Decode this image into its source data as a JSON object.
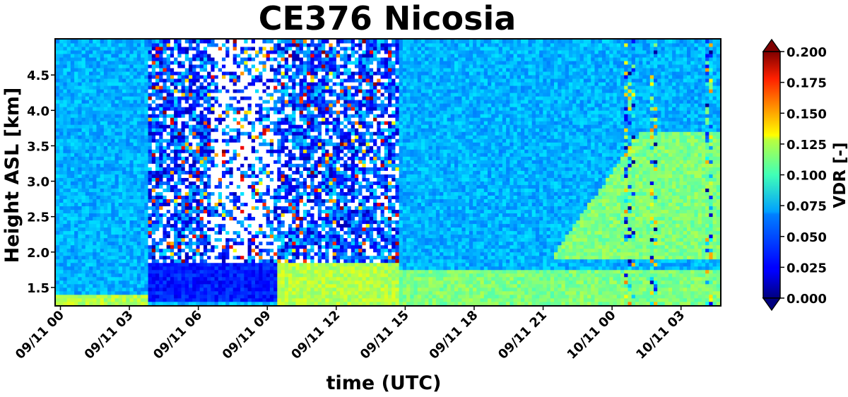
{
  "chart_data": {
    "type": "heatmap",
    "title": "CE376 Nicosia",
    "xlabel": "time (UTC)",
    "ylabel": "Height ASL [km]",
    "x_ticks": [
      "09/11 00",
      "09/11 03",
      "09/11 06",
      "09/11 09",
      "09/11 12",
      "09/11 15",
      "09/11 18",
      "09/11 21",
      "10/11 00",
      "10/11 03"
    ],
    "x_tick_hours": [
      0,
      3,
      6,
      9,
      12,
      15,
      18,
      21,
      24,
      27
    ],
    "xlim_hours": [
      -0.2,
      28.7
    ],
    "y_ticks": [
      "1.5",
      "2.0",
      "2.5",
      "3.0",
      "3.5",
      "4.0",
      "4.5"
    ],
    "y_tick_values": [
      1.5,
      2.0,
      2.5,
      3.0,
      3.5,
      4.0,
      4.5
    ],
    "ylim": [
      1.25,
      5.0
    ],
    "colorbar": {
      "label": "VDR [-]",
      "colormap": "jet",
      "vmin": 0.0,
      "vmax": 0.2,
      "extend": "both",
      "ticks": [
        "0.000",
        "0.025",
        "0.050",
        "0.075",
        "0.100",
        "0.125",
        "0.150",
        "0.175",
        "0.200"
      ],
      "tick_values": [
        0.0,
        0.025,
        0.05,
        0.075,
        0.1,
        0.125,
        0.15,
        0.175,
        0.2
      ]
    },
    "regions": [
      {
        "description": "background free troposphere",
        "t_start": -0.2,
        "t_end": 28.7,
        "h_start": 1.25,
        "h_end": 5.0,
        "vdr": 0.06
      },
      {
        "description": "surface layer",
        "t_start": -0.2,
        "t_end": 3.8,
        "h_start": 1.25,
        "h_end": 1.42,
        "vdr": 0.11
      },
      {
        "description": "noisy cloud period",
        "t_start": 3.8,
        "t_end": 14.8,
        "h_start": 1.3,
        "h_end": 5.0,
        "vdr": 0.03
      },
      {
        "description": "boundary layer dust",
        "t_start": 9.5,
        "t_end": 14.8,
        "h_start": 1.25,
        "h_end": 1.85,
        "vdr": 0.11
      },
      {
        "description": "boundary layer",
        "t_start": 14.8,
        "t_end": 28.7,
        "h_start": 1.25,
        "h_end": 1.75,
        "vdr": 0.1
      },
      {
        "description": "elevated dust layer",
        "t_start": 21.5,
        "t_end": 28.7,
        "h_start": 1.9,
        "h_end": 3.7,
        "vdr": 0.1
      }
    ],
    "grid": false
  }
}
